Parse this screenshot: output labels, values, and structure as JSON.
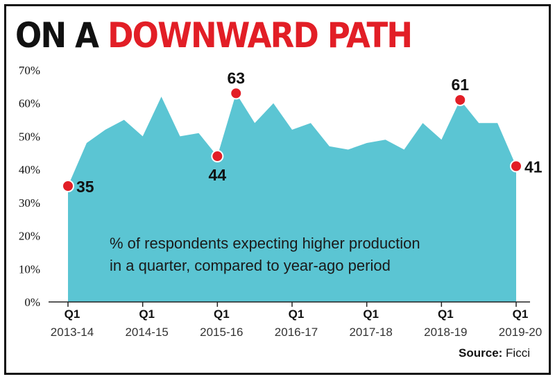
{
  "title": {
    "part1": "ON A",
    "part2": "DOWNWARD PATH"
  },
  "source": {
    "label": "Source:",
    "value": "Ficci"
  },
  "colors": {
    "area": "#5bc5d3",
    "marker": "#e21e26",
    "title_accent": "#e21e26",
    "ink": "#111111"
  },
  "chart_data": {
    "type": "area",
    "title": "ON A DOWNWARD PATH",
    "ylabel": "%",
    "xlabel": "",
    "ylim": [
      0,
      70
    ],
    "yticks": [
      0,
      10,
      20,
      30,
      40,
      50,
      60,
      70
    ],
    "ytick_labels": [
      "0%",
      "10%",
      "20%",
      "30%",
      "40%",
      "50%",
      "60%",
      "70%"
    ],
    "grid": false,
    "x_index": [
      0,
      1,
      2,
      3,
      4,
      5,
      6,
      7,
      8,
      9,
      10,
      11,
      12,
      13,
      14,
      15,
      16,
      17,
      18,
      19,
      20,
      21,
      22,
      23,
      24
    ],
    "values": [
      35,
      48,
      52,
      55,
      50,
      62,
      50,
      51,
      44,
      63,
      54,
      60,
      52,
      54,
      47,
      46,
      48,
      49,
      46,
      54,
      49,
      61,
      54,
      54,
      41
    ],
    "x_ticks": [
      {
        "index": 0,
        "quarter": "Q1",
        "year": "2013-14"
      },
      {
        "index": 4,
        "quarter": "Q1",
        "year": "2014-15"
      },
      {
        "index": 8,
        "quarter": "Q1",
        "year": "2015-16"
      },
      {
        "index": 12,
        "quarter": "Q1",
        "year": "2016-17"
      },
      {
        "index": 16,
        "quarter": "Q1",
        "year": "2017-18"
      },
      {
        "index": 20,
        "quarter": "Q1",
        "year": "2018-19"
      },
      {
        "index": 24,
        "quarter": "Q1",
        "year": "2019-20"
      }
    ],
    "highlights": [
      {
        "index": 0,
        "value": 35,
        "label": "35",
        "pos": "right"
      },
      {
        "index": 8,
        "value": 44,
        "label": "44",
        "pos": "below"
      },
      {
        "index": 9,
        "value": 63,
        "label": "63",
        "pos": "above"
      },
      {
        "index": 21,
        "value": 61,
        "label": "61",
        "pos": "above"
      },
      {
        "index": 24,
        "value": 41,
        "label": "41",
        "pos": "right"
      }
    ],
    "annotation": [
      "% of respondents expecting higher production",
      "in a quarter, compared to year-ago period"
    ]
  }
}
